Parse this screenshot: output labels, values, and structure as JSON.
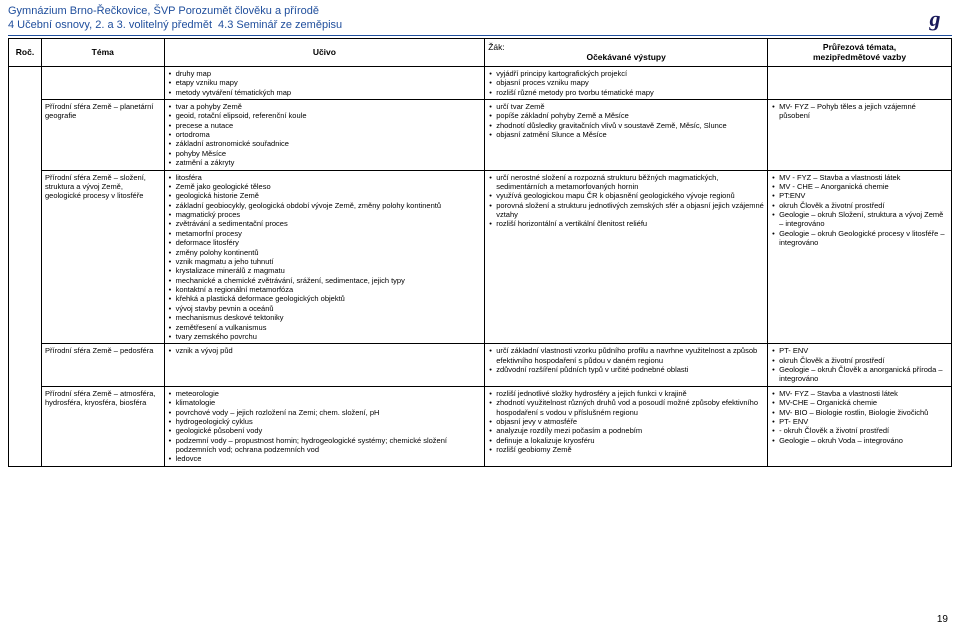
{
  "header": {
    "school": "Gymnázium Brno-Řečkovice, ŠVP Porozumět člověku a přírodě",
    "line2a": "4 Učební osnovy, 2. a 3. volitelný předmět",
    "line2b": "4.3 Seminář ze zeměpisu"
  },
  "logo": "g",
  "columns": {
    "roc": "Roč.",
    "tema": "Téma",
    "ucivo": "Učivo",
    "zak": "Žák:",
    "vystupy": "Očekávané výstupy",
    "prurez1": "Průřezová témata,",
    "prurez2": "mezipředmětové vazby"
  },
  "rows": [
    {
      "tema": "",
      "ucivo": [
        "druhy map",
        "etapy vzniku mapy",
        "metody vytváření tématických map"
      ],
      "vystupy": [
        "vyjádří principy kartografických projekcí",
        "objasní proces vzniku mapy",
        "rozliší různé metody pro tvorbu tématické mapy"
      ],
      "prurez": []
    },
    {
      "tema": "Přírodní sféra Země – planetární geografie",
      "ucivo": [
        "tvar a pohyby Země",
        "geoid, rotační elipsoid, referenční koule",
        "precese a nutace",
        "ortodroma",
        "základní astronomické souřadnice",
        "pohyby Měsíce",
        "zatmění a zákryty"
      ],
      "vystupy": [
        "určí tvar Země",
        "popíše základní pohyby Země a Měsíce",
        "zhodnotí důsledky gravitačních vlivů v soustavě Země, Měsíc, Slunce",
        "objasní zatmění Slunce a Měsíce"
      ],
      "prurez": [
        "MV- FYZ – Pohyb těles a jejich vzájemné působení"
      ]
    },
    {
      "tema": "Přírodní sféra Země – složení, struktura a vývoj Země, geologické procesy v litosféře",
      "ucivo": [
        "litosféra",
        "Země jako geologické těleso",
        "geologická historie Země",
        "základní geobiocykly, geologická období vývoje Země, změny polohy kontinentů",
        "magmatický proces",
        "zvětrávání a sedimentační proces",
        "metamorfní procesy",
        "deformace litosféry",
        "změny polohy kontinentů",
        "vznik magmatu a jeho tuhnutí",
        "krystalizace minerálů z magmatu",
        "mechanické a chemické zvětrávání, srážení, sedimentace, jejich typy",
        "kontaktní a regionální metamorfóza",
        "křehká a plastická deformace geologických objektů",
        "vývoj stavby pevnin a oceánů",
        "mechanismus deskové tektoniky",
        "zemětřesení a vulkanismus",
        "tvary zemského povrchu"
      ],
      "vystupy": [
        "určí nerostné složení a rozpozná strukturu běžných magmatických, sedimentárních a metamorfovaných hornin",
        "využívá geologickou mapu ČR k objasnění geologického vývoje regionů",
        "porovná složení a strukturu jednotlivých zemských sfér a objasní jejich vzájemné vztahy",
        "rozliší horizontální a vertikální členitost reliéfu"
      ],
      "prurez": [
        "MV - FYZ – Stavba a vlastnosti látek",
        "MV - CHE – Anorganická chemie",
        "PT:ENV",
        "okruh Člověk a životní prostředí",
        "Geologie – okruh Složení, struktura a vývoj Země – integrováno",
        "Geologie – okruh Geologické procesy v litosféře – integrováno"
      ]
    },
    {
      "tema": "Přírodní sféra Země – pedosféra",
      "ucivo": [
        "vznik a vývoj půd"
      ],
      "vystupy": [
        "určí základní vlastnosti vzorku půdního profilu a navrhne využitelnost a způsob efektivního hospodaření s půdou v daném regionu",
        "zdůvodní rozšíření půdních typů v určité podnebné oblasti"
      ],
      "prurez": [
        "PT- ENV",
        "okruh Člověk a životní prostředí",
        "Geologie – okruh Člověk a anorganická příroda – integrováno"
      ]
    },
    {
      "tema": "Přírodní sféra Země – atmosféra, hydrosféra, kryosféra, biosféra",
      "ucivo": [
        "meteorologie",
        "klimatologie",
        "povrchové vody – jejich rozložení na Zemi; chem. složení, pH",
        "hydrogeologický cyklus",
        "geologické působení vody",
        "podzemní vody – propustnost hornin; hydrogeologické systémy; chemické složení podzemních vod; ochrana podzemních vod",
        "ledovce"
      ],
      "vystupy": [
        "rozliší jednotlivé složky hydrosféry a jejich funkci v krajině",
        "zhodnotí využitelnost různých druhů vod a posoudí možné způsoby efektivního hospodaření s vodou v příslušném regionu",
        "objasní jevy v atmosféře",
        "analyzuje rozdíly mezi počasím a podnebím",
        "definuje a lokalizuje kryosféru",
        "rozliší geobiomy Země"
      ],
      "prurez": [
        "MV- FYZ – Stavba a vlastnosti látek",
        "MV-CHE – Organická chemie",
        "MV- BIO – Biologie rostlin, Biologie živočichů",
        "PT- ENV",
        "- okruh Člověk a životní prostředí",
        "Geologie – okruh Voda – integrováno"
      ]
    }
  ],
  "pagenum": "19"
}
